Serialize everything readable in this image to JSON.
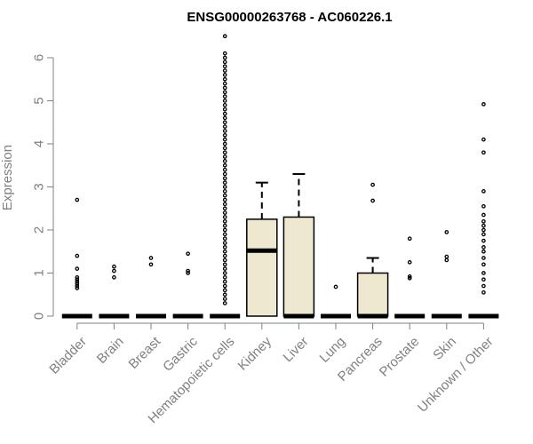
{
  "chart_data": {
    "type": "box",
    "title": "ENSG00000263768 - AC060226.1",
    "ylabel": "Expression",
    "xlabel": "",
    "ylim": [
      0,
      6.5
    ],
    "yticks": [
      0,
      1,
      2,
      3,
      4,
      5,
      6
    ],
    "box_fill": "#EEE8D0",
    "grid": false,
    "categories": [
      "Bladder",
      "Brain",
      "Breast",
      "Gastric",
      "Hematopoietic cells",
      "Kidney",
      "Liver",
      "Lung",
      "Pancreas",
      "Prostate",
      "Skin",
      "Unknown / Other"
    ],
    "boxes": [
      {
        "q1": 0,
        "median": 0,
        "q3": 0,
        "whisker_low": 0,
        "whisker_high": 0,
        "outliers": [
          0.65,
          0.7,
          0.75,
          0.8,
          0.85,
          0.9,
          1.1,
          1.4,
          2.7
        ]
      },
      {
        "q1": 0,
        "median": 0,
        "q3": 0,
        "whisker_low": 0,
        "whisker_high": 0,
        "outliers": [
          0.9,
          1.05,
          1.15
        ]
      },
      {
        "q1": 0,
        "median": 0,
        "q3": 0,
        "whisker_low": 0,
        "whisker_high": 0,
        "outliers": [
          1.2,
          1.35
        ]
      },
      {
        "q1": 0,
        "median": 0,
        "q3": 0,
        "whisker_low": 0,
        "whisker_high": 0,
        "outliers": [
          1.0,
          1.05,
          1.45
        ]
      },
      {
        "q1": 0,
        "median": 0,
        "q3": 0,
        "whisker_low": 0,
        "whisker_high": 0,
        "outliers": [
          0.3,
          0.4,
          0.5,
          0.6,
          0.7,
          0.8,
          0.9,
          1.0,
          1.1,
          1.2,
          1.3,
          1.4,
          1.5,
          1.6,
          1.7,
          1.8,
          1.9,
          2.0,
          2.1,
          2.2,
          2.3,
          2.4,
          2.5,
          2.6,
          2.7,
          2.8,
          2.9,
          3.0,
          3.1,
          3.2,
          3.3,
          3.4,
          3.5,
          3.6,
          3.7,
          3.8,
          3.9,
          4.0,
          4.1,
          4.2,
          4.3,
          4.4,
          4.5,
          4.6,
          4.7,
          4.8,
          4.9,
          5.0,
          5.1,
          5.2,
          5.3,
          5.4,
          5.5,
          5.6,
          5.7,
          5.8,
          5.9,
          6.0,
          6.1,
          6.5
        ]
      },
      {
        "q1": 0,
        "median": 1.52,
        "q3": 2.25,
        "whisker_low": 0,
        "whisker_high": 3.1,
        "outliers": []
      },
      {
        "q1": 0,
        "median": 0,
        "q3": 2.3,
        "whisker_low": 0,
        "whisker_high": 3.3,
        "outliers": []
      },
      {
        "q1": 0,
        "median": 0,
        "q3": 0,
        "whisker_low": 0,
        "whisker_high": 0,
        "outliers": [
          0.68
        ]
      },
      {
        "q1": 0,
        "median": 0,
        "q3": 1.0,
        "whisker_low": 0,
        "whisker_high": 1.35,
        "outliers": [
          2.68,
          3.05
        ]
      },
      {
        "q1": 0,
        "median": 0,
        "q3": 0,
        "whisker_low": 0,
        "whisker_high": 0,
        "outliers": [
          0.88,
          0.92,
          1.25,
          1.8
        ]
      },
      {
        "q1": 0,
        "median": 0,
        "q3": 0,
        "whisker_low": 0,
        "whisker_high": 0,
        "outliers": [
          1.3,
          1.38,
          1.95
        ]
      },
      {
        "q1": 0,
        "median": 0,
        "q3": 0,
        "whisker_low": 0,
        "whisker_high": 0,
        "outliers": [
          0.55,
          0.7,
          0.85,
          1.0,
          1.2,
          1.35,
          1.5,
          1.6,
          1.75,
          1.9,
          2.0,
          2.1,
          2.2,
          2.35,
          2.55,
          2.9,
          3.8,
          4.1,
          4.92
        ]
      }
    ]
  }
}
